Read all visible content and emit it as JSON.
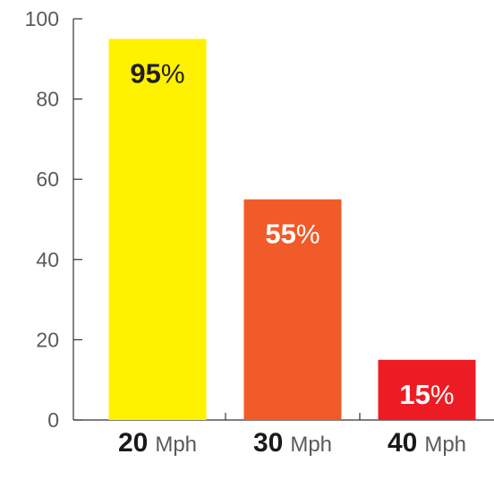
{
  "chart_data": {
    "type": "bar",
    "title": "",
    "xlabel": "",
    "ylabel": "",
    "ylim": [
      0,
      100
    ],
    "y_ticks": [
      0,
      20,
      40,
      60,
      80,
      100
    ],
    "grid": false,
    "categories": [
      {
        "number": "20",
        "unit": "Mph"
      },
      {
        "number": "30",
        "unit": "Mph"
      },
      {
        "number": "40",
        "unit": "Mph"
      }
    ],
    "values": [
      95,
      55,
      15
    ],
    "data_labels": [
      {
        "number": "95",
        "suffix": "%"
      },
      {
        "number": "55",
        "suffix": "%"
      },
      {
        "number": "15",
        "suffix": "%"
      }
    ],
    "bar_colors": [
      "#fff200",
      "#f15a29",
      "#ed1c24"
    ],
    "label_colors": [
      "#231f20",
      "#ffffff",
      "#ffffff"
    ],
    "axis_color": "#333333"
  }
}
